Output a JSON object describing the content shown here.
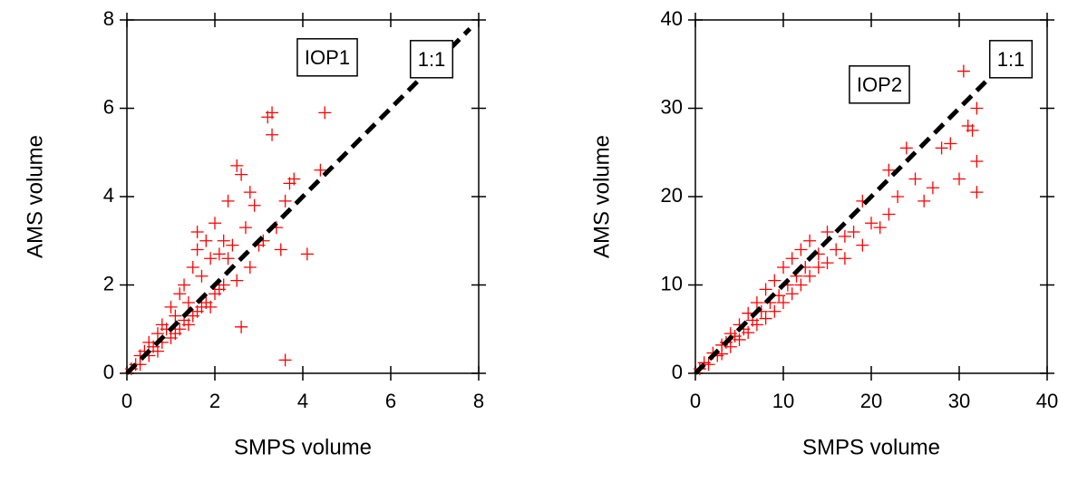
{
  "chart_data": [
    {
      "type": "scatter",
      "x_label": "SMPS volume",
      "y_label": "AMS volume",
      "annotation": "IOP1",
      "color": "#ff0000",
      "xlim": [
        0,
        8
      ],
      "ylim": [
        0,
        8
      ],
      "xticks": [
        0,
        2,
        4,
        6,
        8
      ],
      "yticks": [
        0,
        2,
        4,
        6,
        8
      ],
      "ref_line": {
        "label": "1:1",
        "x": [
          0,
          7.8
        ],
        "y": [
          0,
          7.8
        ]
      },
      "x": [
        0.1,
        0.2,
        0.3,
        0.3,
        0.4,
        0.5,
        0.5,
        0.6,
        0.7,
        0.7,
        0.8,
        0.8,
        0.9,
        1.0,
        1.0,
        1.1,
        1.1,
        1.2,
        1.2,
        1.3,
        1.3,
        1.4,
        1.4,
        1.5,
        1.5,
        1.6,
        1.6,
        1.7,
        1.7,
        1.8,
        1.8,
        1.9,
        1.9,
        2.0,
        2.0,
        2.1,
        2.1,
        2.2,
        2.2,
        2.3,
        2.4,
        2.5,
        2.5,
        2.6,
        2.7,
        2.8,
        2.9,
        3.0,
        3.1,
        3.2,
        3.3,
        3.3,
        3.4,
        3.5,
        3.6,
        3.7,
        3.8,
        4.1,
        4.4,
        4.5,
        2.6,
        3.6,
        2.3,
        2.8,
        1.6
      ],
      "values": [
        0.1,
        0.2,
        0.4,
        0.2,
        0.5,
        0.4,
        0.7,
        0.6,
        0.9,
        0.5,
        1.1,
        0.7,
        1.0,
        1.5,
        0.8,
        1.3,
        0.9,
        1.8,
        1.0,
        2.0,
        1.2,
        1.6,
        1.1,
        2.4,
        1.3,
        2.8,
        1.4,
        2.2,
        1.5,
        3.0,
        1.6,
        2.6,
        1.5,
        3.4,
        1.8,
        2.7,
        1.9,
        3.0,
        2.0,
        2.6,
        2.9,
        4.7,
        2.1,
        4.5,
        3.3,
        2.4,
        3.8,
        2.9,
        3.0,
        5.8,
        5.9,
        5.4,
        3.3,
        2.8,
        3.9,
        4.3,
        4.4,
        2.7,
        4.6,
        5.9,
        1.05,
        0.3,
        3.9,
        4.1,
        3.2
      ]
    },
    {
      "type": "scatter",
      "x_label": "SMPS volume",
      "y_label": "AMS volume",
      "annotation": "IOP2",
      "color": "#ff0000",
      "xlim": [
        0,
        40
      ],
      "ylim": [
        0,
        40
      ],
      "xticks": [
        0,
        10,
        20,
        30,
        40
      ],
      "yticks": [
        0,
        10,
        20,
        30,
        40
      ],
      "ref_line": {
        "label": "1:1",
        "x": [
          0,
          33
        ],
        "y": [
          0,
          33
        ]
      },
      "x": [
        0.5,
        1,
        1.5,
        2,
        2.5,
        3,
        3,
        3.5,
        4,
        4,
        4.5,
        5,
        5,
        5.5,
        6,
        6,
        6.5,
        7,
        7,
        7.5,
        8,
        8,
        8.5,
        9,
        9,
        9.5,
        10,
        10,
        10.5,
        11,
        11,
        11.5,
        12,
        12,
        12.5,
        13,
        13,
        14,
        14,
        15,
        15,
        16,
        17,
        17,
        18,
        19,
        19,
        20,
        21,
        22,
        22,
        23,
        24,
        25,
        26,
        27,
        28,
        29,
        30,
        30.5,
        31,
        31.5,
        32,
        32,
        32
      ],
      "values": [
        0.5,
        1.2,
        1.0,
        2.3,
        2.0,
        3.2,
        2.2,
        3.5,
        4.5,
        3.0,
        4.2,
        5.5,
        3.8,
        5.0,
        6.8,
        4.6,
        6.0,
        8.0,
        5.5,
        7.0,
        9.5,
        6.2,
        8.0,
        10.5,
        7.0,
        8.8,
        12,
        8.0,
        10,
        13,
        9.0,
        11,
        14,
        10,
        12,
        15,
        11,
        13.5,
        12,
        16,
        12.5,
        14,
        15.5,
        13,
        16,
        19.5,
        14.5,
        17,
        16.5,
        18,
        23,
        20,
        25.5,
        22,
        19.5,
        21,
        25.5,
        26,
        22,
        34.2,
        28,
        27.5,
        30,
        24,
        20.5
      ]
    }
  ]
}
